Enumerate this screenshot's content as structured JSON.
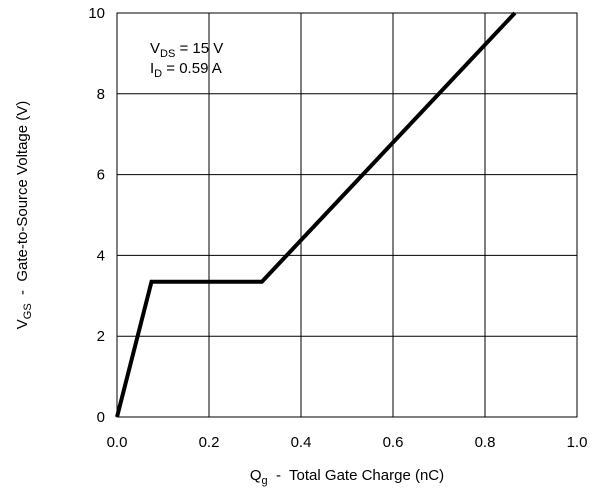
{
  "chart_data": {
    "type": "line",
    "x_range": [
      0.0,
      1.0
    ],
    "y_range": [
      0,
      10
    ],
    "x_ticks": [
      {
        "value": 0.0,
        "label": "0.0"
      },
      {
        "value": 0.2,
        "label": "0.2"
      },
      {
        "value": 0.4,
        "label": "0.4"
      },
      {
        "value": 0.6,
        "label": "0.6"
      },
      {
        "value": 0.8,
        "label": "0.8"
      },
      {
        "value": 1.0,
        "label": "1.0"
      }
    ],
    "y_ticks": [
      {
        "value": 0,
        "label": "0"
      },
      {
        "value": 2,
        "label": "2"
      },
      {
        "value": 4,
        "label": "4"
      },
      {
        "value": 6,
        "label": "6"
      },
      {
        "value": 8,
        "label": "8"
      },
      {
        "value": 10,
        "label": "10"
      }
    ],
    "xlabel": {
      "main": "Q",
      "sub": "g",
      "rest": "  -  Total Gate Charge (nC)"
    },
    "ylabel": {
      "main": "V",
      "sub": "GS",
      "rest": "  -  Gate-to-Source Voltage (V)"
    },
    "annotations": [
      {
        "main": "V",
        "sub": "DS",
        "rest": " = 15 V"
      },
      {
        "main": "I",
        "sub": "D",
        "rest": " = 0.59 A"
      }
    ],
    "grid": true,
    "series": [
      {
        "color": "#000000",
        "points": [
          {
            "x": 0.0,
            "y": 0.0
          },
          {
            "x": 0.075,
            "y": 3.35
          },
          {
            "x": 0.315,
            "y": 3.35
          },
          {
            "x": 0.865,
            "y": 10.0
          }
        ]
      }
    ]
  }
}
